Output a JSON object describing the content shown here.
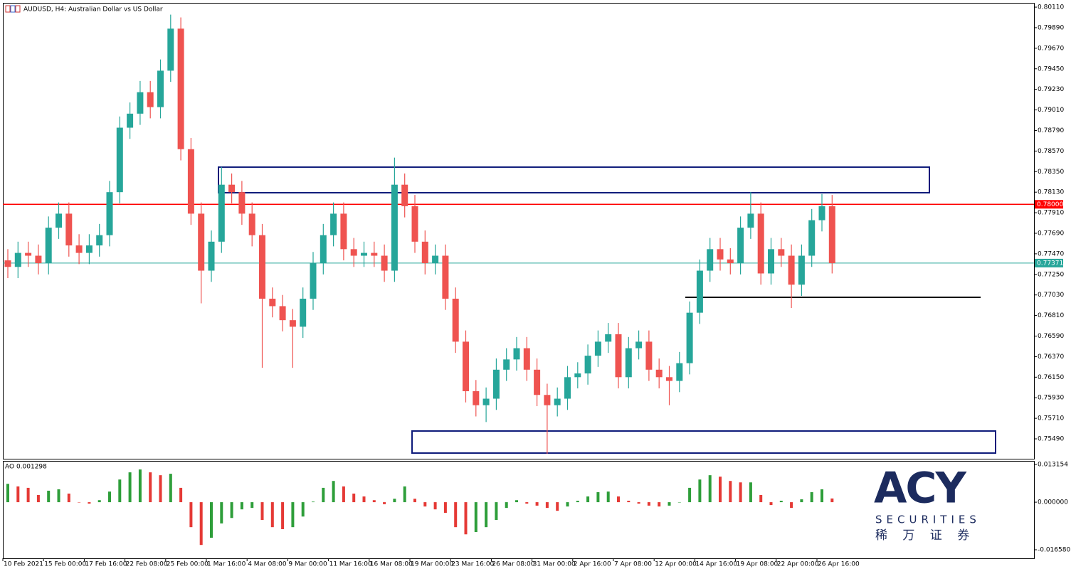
{
  "chart_data": [
    {
      "type": "candlestick",
      "title": "AUDUSD, H4:  Australian Dollar vs US Dollar",
      "categories": [
        "10 Feb 2021",
        null,
        null,
        null,
        "15 Feb 00:00",
        null,
        null,
        null,
        "17 Feb 16:00",
        null,
        null,
        null,
        "22 Feb 08:00",
        null,
        null,
        null,
        "25 Feb 00:00",
        null,
        null,
        null,
        "1 Mar 16:00",
        null,
        null,
        null,
        "4 Mar 08:00",
        null,
        null,
        null,
        "9 Mar 00:00",
        null,
        null,
        null,
        "11 Mar 16:00",
        null,
        null,
        null,
        "16 Mar 08:00",
        null,
        null,
        null,
        "19 Mar 00:00",
        null,
        null,
        null,
        "23 Mar 16:00",
        null,
        null,
        null,
        "26 Mar 08:00",
        null,
        null,
        null,
        "31 Mar 00:00",
        null,
        null,
        null,
        "2 Apr 16:00",
        null,
        null,
        null,
        "7 Apr 08:00",
        null,
        null,
        null,
        "12 Apr 00:00",
        null,
        null,
        null,
        "14 Apr 16:00",
        null,
        null,
        null,
        "19 Apr 08:00",
        null,
        null,
        null,
        "22 Apr 00:00",
        null,
        null,
        null,
        "26 Apr 16:00",
        null
      ],
      "open": [
        0.774,
        0.7733,
        0.7748,
        0.7745,
        0.7737,
        0.7775,
        0.779,
        0.7756,
        0.7748,
        0.7756,
        0.7767,
        0.7813,
        0.7882,
        0.7897,
        0.792,
        0.7904,
        0.7943,
        0.7988,
        0.7859,
        0.779,
        0.7729,
        0.776,
        0.7821,
        0.7813,
        0.779,
        0.7767,
        0.7699,
        0.7691,
        0.7676,
        0.7669,
        0.7699,
        0.7737,
        0.7767,
        0.779,
        0.7752,
        0.7745,
        0.7748,
        0.7745,
        0.7729,
        0.7821,
        0.7798,
        0.776,
        0.7737,
        0.7745,
        0.7699,
        0.7653,
        0.76,
        0.7585,
        0.7592,
        0.7623,
        0.7634,
        0.7646,
        0.7623,
        0.7596,
        0.7585,
        0.7592,
        0.7615,
        0.7619,
        0.7638,
        0.7653,
        0.7661,
        0.7615,
        0.7646,
        0.7653,
        0.7623,
        0.7615,
        0.7611,
        0.763,
        0.7684,
        0.7729,
        0.7752,
        0.7741,
        0.7737,
        0.7775,
        0.779,
        0.7726,
        0.7752,
        0.7745,
        0.7714,
        0.7745,
        0.7783,
        0.7798
      ],
      "high": [
        0.7752,
        0.776,
        0.776,
        0.7757,
        0.7787,
        0.7802,
        0.7802,
        0.7768,
        0.7768,
        0.7779,
        0.7825,
        0.7894,
        0.7909,
        0.7932,
        0.7932,
        0.7955,
        0.8003,
        0.8,
        0.7871,
        0.7802,
        0.7772,
        0.784,
        0.7833,
        0.7825,
        0.7802,
        0.7779,
        0.7711,
        0.7703,
        0.7688,
        0.7711,
        0.7749,
        0.7779,
        0.7802,
        0.7802,
        0.7764,
        0.776,
        0.776,
        0.7757,
        0.785,
        0.7833,
        0.781,
        0.7772,
        0.7757,
        0.7757,
        0.7711,
        0.7665,
        0.7612,
        0.7604,
        0.7635,
        0.7646,
        0.7658,
        0.7658,
        0.7635,
        0.7608,
        0.7604,
        0.7627,
        0.7631,
        0.765,
        0.7665,
        0.7673,
        0.7673,
        0.7658,
        0.7665,
        0.7665,
        0.7635,
        0.7627,
        0.7642,
        0.7696,
        0.7741,
        0.7764,
        0.7764,
        0.7753,
        0.7787,
        0.7813,
        0.7802,
        0.7764,
        0.7764,
        0.7757,
        0.7757,
        0.7795,
        0.7811,
        0.781
      ],
      "low": [
        0.7721,
        0.7721,
        0.7733,
        0.7725,
        0.7725,
        0.7763,
        0.7744,
        0.7736,
        0.7736,
        0.7744,
        0.7755,
        0.7801,
        0.787,
        0.7885,
        0.7892,
        0.7892,
        0.7931,
        0.7847,
        0.7778,
        0.7694,
        0.7717,
        0.7748,
        0.7801,
        0.7778,
        0.7755,
        0.7625,
        0.7679,
        0.7664,
        0.7625,
        0.7657,
        0.7687,
        0.7725,
        0.7755,
        0.774,
        0.7733,
        0.7733,
        0.7733,
        0.7717,
        0.7717,
        0.7786,
        0.7748,
        0.7725,
        0.7725,
        0.7687,
        0.7641,
        0.7588,
        0.7573,
        0.7567,
        0.758,
        0.7611,
        0.7622,
        0.7611,
        0.7584,
        0.7533,
        0.7573,
        0.758,
        0.7603,
        0.7607,
        0.7626,
        0.7641,
        0.7603,
        0.7603,
        0.7634,
        0.7611,
        0.7603,
        0.7585,
        0.7599,
        0.7618,
        0.7672,
        0.7717,
        0.7729,
        0.7725,
        0.7725,
        0.7763,
        0.7714,
        0.7714,
        0.7733,
        0.7689,
        0.7702,
        0.7733,
        0.7771,
        0.7726
      ],
      "close": [
        0.7733,
        0.7748,
        0.7745,
        0.7737,
        0.7775,
        0.779,
        0.7756,
        0.7748,
        0.7756,
        0.7767,
        0.7813,
        0.7882,
        0.7897,
        0.792,
        0.7904,
        0.7943,
        0.7988,
        0.7859,
        0.779,
        0.7729,
        0.776,
        0.7821,
        0.7813,
        0.779,
        0.7767,
        0.7699,
        0.7691,
        0.7676,
        0.7669,
        0.7699,
        0.7737,
        0.7767,
        0.779,
        0.7752,
        0.7745,
        0.7748,
        0.7745,
        0.7729,
        0.7821,
        0.7798,
        0.776,
        0.7737,
        0.7745,
        0.7699,
        0.7653,
        0.76,
        0.7585,
        0.7592,
        0.7623,
        0.7634,
        0.7646,
        0.7623,
        0.7596,
        0.7585,
        0.7592,
        0.7615,
        0.7619,
        0.7638,
        0.7653,
        0.7661,
        0.7615,
        0.7646,
        0.7653,
        0.7623,
        0.7615,
        0.7611,
        0.763,
        0.7684,
        0.7729,
        0.7752,
        0.7741,
        0.7737,
        0.7775,
        0.779,
        0.7726,
        0.7752,
        0.7745,
        0.7714,
        0.7745,
        0.7783,
        0.7798,
        0.7737
      ],
      "up_color": "#26a69a",
      "down_color": "#ef5350",
      "ylim": [
        0.75277,
        0.80156
      ],
      "yticks": [
        {
          "value": 0.8011,
          "label": "0.80110"
        },
        {
          "value": 0.7989,
          "label": "0.79890"
        },
        {
          "value": 0.7967,
          "label": "0.79670"
        },
        {
          "value": 0.7945,
          "label": "0.79450"
        },
        {
          "value": 0.7923,
          "label": "0.79230"
        },
        {
          "value": 0.7901,
          "label": "0.79010"
        },
        {
          "value": 0.7879,
          "label": "0.78790"
        },
        {
          "value": 0.7857,
          "label": "0.78570"
        },
        {
          "value": 0.7835,
          "label": "0.78350"
        },
        {
          "value": 0.7813,
          "label": "0.78130"
        },
        {
          "value": 0.7791,
          "label": "0.77910"
        },
        {
          "value": 0.7769,
          "label": "0.77690"
        },
        {
          "value": 0.7747,
          "label": "0.77470"
        },
        {
          "value": 0.7725,
          "label": "0.77250"
        },
        {
          "value": 0.7703,
          "label": "0.77030"
        },
        {
          "value": 0.7681,
          "label": "0.76810"
        },
        {
          "value": 0.7659,
          "label": "0.76590"
        },
        {
          "value": 0.7637,
          "label": "0.76370"
        },
        {
          "value": 0.7615,
          "label": "0.76150"
        },
        {
          "value": 0.7593,
          "label": "0.75930"
        },
        {
          "value": 0.7571,
          "label": "0.75710"
        },
        {
          "value": 0.7549,
          "label": "0.75490"
        }
      ],
      "levels": [
        {
          "value": 0.78,
          "label": "0.78000",
          "color": "#ff0000"
        },
        {
          "value": 0.77371,
          "label": "0.77371",
          "color": "#26a69a"
        }
      ],
      "zones": [
        {
          "low": 0.78124,
          "high": 0.78398,
          "color": "#0d1a7a"
        },
        {
          "low": 0.75338,
          "high": 0.75574,
          "color": "#0d1a7a"
        }
      ],
      "lines": [
        {
          "value": 0.77005,
          "color": "#000000"
        }
      ]
    },
    {
      "type": "bar",
      "title": "AO 0.001298",
      "values": [
        0.0064,
        0.0055,
        0.005,
        0.0025,
        0.004,
        0.0045,
        0.003,
        0.0,
        -0.0005,
        0.0007,
        0.0037,
        0.0079,
        0.0104,
        0.0114,
        0.0104,
        0.0094,
        0.0099,
        0.005,
        -0.0087,
        -0.0149,
        -0.0124,
        -0.0074,
        -0.0055,
        -0.0025,
        -0.002,
        -0.0062,
        -0.0087,
        -0.0094,
        -0.0087,
        -0.005,
        0.0002,
        0.005,
        0.0074,
        0.0055,
        0.003,
        0.002,
        0.0007,
        -0.0007,
        0.0012,
        0.0055,
        0.0012,
        -0.0015,
        -0.0025,
        -0.0037,
        -0.0087,
        -0.0112,
        -0.0104,
        -0.0087,
        -0.0062,
        -0.002,
        0.0007,
        -0.0005,
        -0.0012,
        -0.002,
        -0.003,
        -0.0015,
        0.0005,
        0.002,
        0.0035,
        0.0037,
        0.002,
        0.0005,
        -0.0005,
        -0.0012,
        -0.0015,
        -0.0012,
        0.0,
        0.005,
        0.0079,
        0.0094,
        0.0089,
        0.0074,
        0.0069,
        0.0069,
        0.0025,
        -0.001,
        0.0005,
        -0.002,
        0.001,
        0.0035,
        0.0045,
        0.001298
      ],
      "up_color": "#2e9e3a",
      "down_color": "#e53935",
      "ylim": [
        -0.01956,
        0.01439
      ],
      "yticks": [
        0.013154,
        {
          "value": 0,
          "label": "0.000000"
        },
        {
          "value": -0.01658,
          "label": "-0.016580"
        }
      ]
    }
  ],
  "logo": {
    "name": "ACY",
    "sub": "SECURITIES",
    "cn": "稀 万 证 券"
  }
}
